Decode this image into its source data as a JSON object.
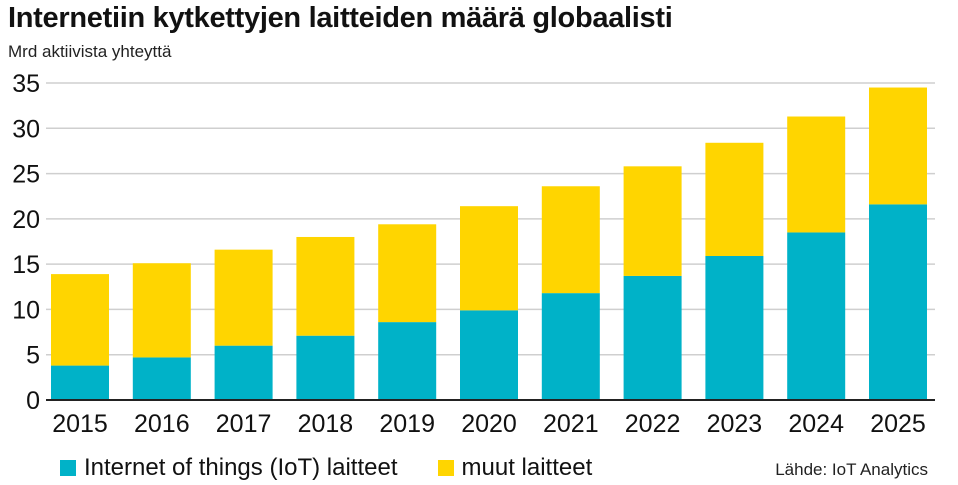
{
  "chart_data": {
    "type": "bar",
    "stacked": true,
    "title": "Internetiin kytkettyjen laitteiden määrä globaalisti",
    "subtitle": "Mrd aktiivista yhteyttä",
    "categories": [
      "2015",
      "2016",
      "2017",
      "2018",
      "2019",
      "2020",
      "2021",
      "2022",
      "2023",
      "2024",
      "2025"
    ],
    "series": [
      {
        "name": "Internet of things (IoT) laitteet",
        "color": "#00b2c8",
        "values": [
          3.8,
          4.7,
          6.0,
          7.1,
          8.6,
          9.9,
          11.8,
          13.7,
          15.9,
          18.5,
          21.6
        ]
      },
      {
        "name": "muut laitteet",
        "color": "#ffd500",
        "values": [
          10.1,
          10.4,
          10.6,
          10.9,
          10.8,
          11.5,
          11.8,
          12.1,
          12.5,
          12.8,
          12.9
        ]
      }
    ],
    "yticks": [
      "0",
      "5",
      "10",
      "15",
      "20",
      "25",
      "30",
      "35"
    ],
    "ylim": [
      0,
      35
    ],
    "xlabel": "",
    "ylabel": "",
    "grid": true,
    "legend_position": "bottom-left",
    "source": "Lähde: IoT Analytics"
  }
}
